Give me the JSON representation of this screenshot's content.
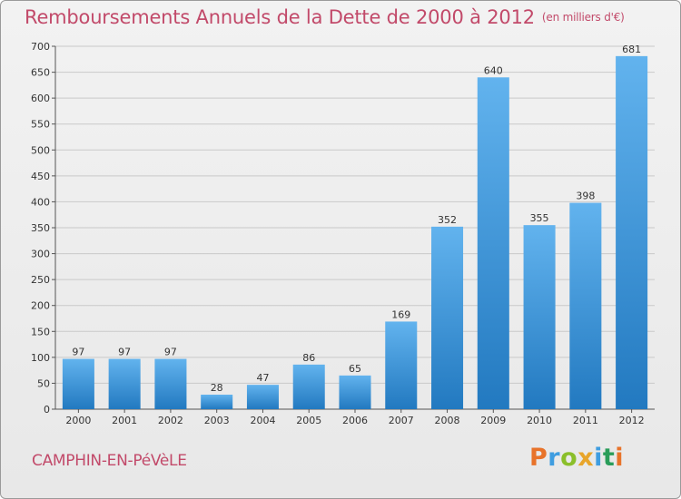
{
  "title": {
    "main": "Remboursements Annuels de la Dette de 2000 à 2012",
    "unit": "(en milliers d'€)"
  },
  "commune": "CAMPHIN-EN-PéVèLE",
  "logo": {
    "letters": [
      "P",
      "r",
      "o",
      "x",
      "i",
      "t",
      "i"
    ],
    "colors": [
      "#e8732a",
      "#3f9de0",
      "#8bbf2a",
      "#e8a52a",
      "#3f9de0",
      "#2a9d5a",
      "#e8732a"
    ]
  },
  "colors": {
    "bar_top": "#62b3ee",
    "bar_bottom": "#2279c0",
    "grid": "#c9c9c9",
    "axis": "#555555",
    "title": "#c24a6a"
  },
  "chart_data": {
    "type": "bar",
    "title": "Remboursements Annuels de la Dette de 2000 à 2012",
    "xlabel": "",
    "ylabel": "",
    "categories": [
      "2000",
      "2001",
      "2002",
      "2003",
      "2004",
      "2005",
      "2006",
      "2007",
      "2008",
      "2009",
      "2010",
      "2011",
      "2012"
    ],
    "values": [
      97,
      97,
      97,
      28,
      47,
      86,
      65,
      169,
      352,
      640,
      355,
      398,
      681
    ],
    "ylim": [
      0,
      700
    ],
    "yticks": [
      0,
      50,
      100,
      150,
      200,
      250,
      300,
      350,
      400,
      450,
      500,
      550,
      600,
      650,
      700
    ],
    "grid": true,
    "legend": "none"
  }
}
